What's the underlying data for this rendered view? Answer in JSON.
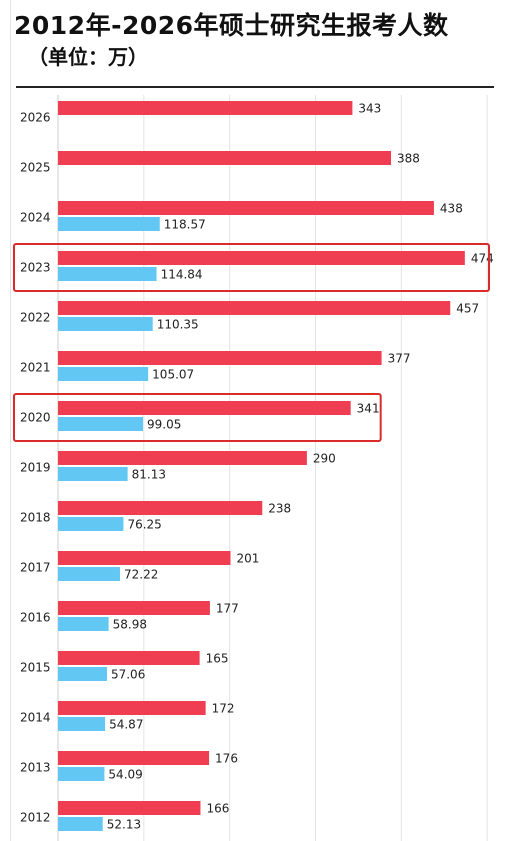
{
  "title": "2012年-2026年硕士研究生报考人数",
  "subtitle": "（单位：万）",
  "chart_data": {
    "type": "bar",
    "orientation": "horizontal",
    "categories": [
      "2026",
      "2025",
      "2024",
      "2023",
      "2022",
      "2021",
      "2020",
      "2019",
      "2018",
      "2017",
      "2016",
      "2015",
      "2014",
      "2013",
      "2012"
    ],
    "series": [
      {
        "values": [
          343,
          388,
          438,
          474,
          457,
          377,
          341,
          290,
          238,
          201,
          177,
          165,
          172,
          176,
          166
        ]
      },
      {
        "values": [
          null,
          null,
          118.57,
          114.84,
          110.35,
          105.07,
          99.05,
          81.13,
          76.25,
          72.22,
          58.98,
          57.06,
          54.87,
          54.09,
          52.13
        ]
      }
    ],
    "value_labels": [
      [
        "343",
        "388",
        "438",
        "474",
        "457",
        "377",
        "341",
        "290",
        "238",
        "201",
        "177",
        "165",
        "172",
        "176",
        "166"
      ],
      [
        "",
        "",
        "118.57",
        "114.84",
        "110.35",
        "105.07",
        "99.05",
        "81.13",
        "76.25",
        "72.22",
        "58.98",
        "57.06",
        "54.87",
        "54.09",
        "52.13"
      ]
    ],
    "xlim": [
      0,
      500
    ],
    "grid": true,
    "highlighted_categories": [
      "2023",
      "2020"
    ],
    "colors": {
      "series1": "#ef3e52",
      "series2": "#63c7f3",
      "highlight_box": "#d92b2b",
      "grid": "#e4e4e4"
    }
  }
}
